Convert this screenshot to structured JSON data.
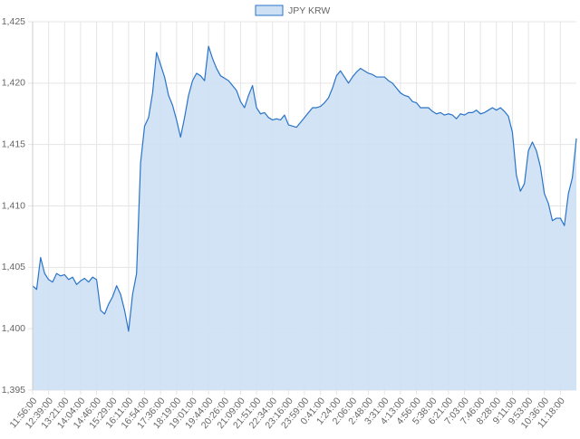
{
  "chart_data": {
    "type": "area",
    "categories": [
      "11:56:00",
      null,
      null,
      null,
      "12:39:00",
      null,
      null,
      null,
      "13:21:00",
      null,
      null,
      null,
      "14:04:00",
      null,
      null,
      null,
      "14:46:00",
      null,
      null,
      null,
      "15:29:00",
      null,
      null,
      null,
      "16:11:00",
      null,
      null,
      null,
      "16:54:00",
      null,
      null,
      null,
      "17:36:00",
      null,
      null,
      null,
      "18:19:00",
      null,
      null,
      null,
      "19:01:00",
      null,
      null,
      null,
      "19:44:00",
      null,
      null,
      null,
      "20:26:00",
      null,
      null,
      null,
      "21:09:00",
      null,
      null,
      null,
      "21:51:00",
      null,
      null,
      null,
      "22:34:00",
      null,
      null,
      null,
      "23:16:00",
      null,
      null,
      null,
      "23:59:00",
      null,
      null,
      null,
      "0:41:00",
      null,
      null,
      null,
      "1:24:00",
      null,
      null,
      null,
      "2:06:00",
      null,
      null,
      null,
      "2:48:00",
      null,
      null,
      null,
      "3:31:00",
      null,
      null,
      null,
      "4:13:00",
      null,
      null,
      null,
      "4:56:00",
      null,
      null,
      null,
      "5:38:00",
      null,
      null,
      null,
      "6:21:00",
      null,
      null,
      null,
      "7:03:00",
      null,
      null,
      null,
      "7:46:00",
      null,
      null,
      null,
      "8:28:00",
      null,
      null,
      null,
      "9:11:00",
      null,
      null,
      null,
      "9:53:00",
      null,
      null,
      null,
      "10:36:00",
      null,
      null,
      null,
      "11:18:00",
      null,
      null,
      null,
      null
    ],
    "series": [
      {
        "name": "JPY KRW",
        "color": "#2a74c8",
        "fill": "#cde0f4",
        "values": [
          1403.5,
          1403.2,
          1405.8,
          1404.5,
          1404,
          1403.8,
          1404.5,
          1404.3,
          1404.4,
          1404,
          1404.2,
          1403.6,
          1403.9,
          1404.1,
          1403.8,
          1404.2,
          1404,
          1401.5,
          1401.2,
          1402,
          1402.6,
          1403.5,
          1402.8,
          1401.5,
          1399.8,
          1402.8,
          1404.5,
          1413.5,
          1416.5,
          1417.2,
          1419.2,
          1422.5,
          1421.5,
          1420.5,
          1419,
          1418.2,
          1417,
          1415.6,
          1417.2,
          1419,
          1420.2,
          1420.8,
          1420.6,
          1420.2,
          1423,
          1422,
          1421.2,
          1420.6,
          1420.4,
          1420.2,
          1419.8,
          1419.4,
          1418.5,
          1418,
          1419,
          1419.8,
          1418,
          1417.5,
          1417.6,
          1417.2,
          1417,
          1417.1,
          1417,
          1417.4,
          1416.6,
          1416.5,
          1416.4,
          1416.8,
          1417.2,
          1417.6,
          1418,
          1418,
          1418.1,
          1418.4,
          1418.8,
          1419.6,
          1420.6,
          1421,
          1420.5,
          1420,
          1420.5,
          1420.9,
          1421.2,
          1421,
          1420.8,
          1420.7,
          1420.5,
          1420.5,
          1420.5,
          1420.2,
          1420,
          1419.6,
          1419.2,
          1419,
          1418.9,
          1418.5,
          1418.4,
          1418,
          1418,
          1418,
          1417.7,
          1417.5,
          1417.6,
          1417.4,
          1417.5,
          1417.4,
          1417.1,
          1417.5,
          1417.4,
          1417.6,
          1417.6,
          1417.8,
          1417.5,
          1417.6,
          1417.8,
          1418,
          1417.8,
          1418,
          1417.7,
          1417.3,
          1416,
          1412.5,
          1411.2,
          1411.8,
          1414.5,
          1415.2,
          1414.5,
          1413.2,
          1411,
          1410.2,
          1408.8,
          1409,
          1409,
          1408.4,
          1411,
          1412.3,
          1415.5
        ]
      }
    ],
    "ylim": [
      1395,
      1425
    ],
    "yticks": [
      {
        "value": 1395,
        "label": "1,395"
      },
      {
        "value": 1400,
        "label": "1,400"
      },
      {
        "value": 1405,
        "label": "1,405"
      },
      {
        "value": 1410,
        "label": "1,410"
      },
      {
        "value": 1415,
        "label": "1,415"
      },
      {
        "value": 1420,
        "label": "1,420"
      },
      {
        "value": 1425,
        "label": "1,425"
      }
    ],
    "grid": true,
    "legend": "top"
  }
}
